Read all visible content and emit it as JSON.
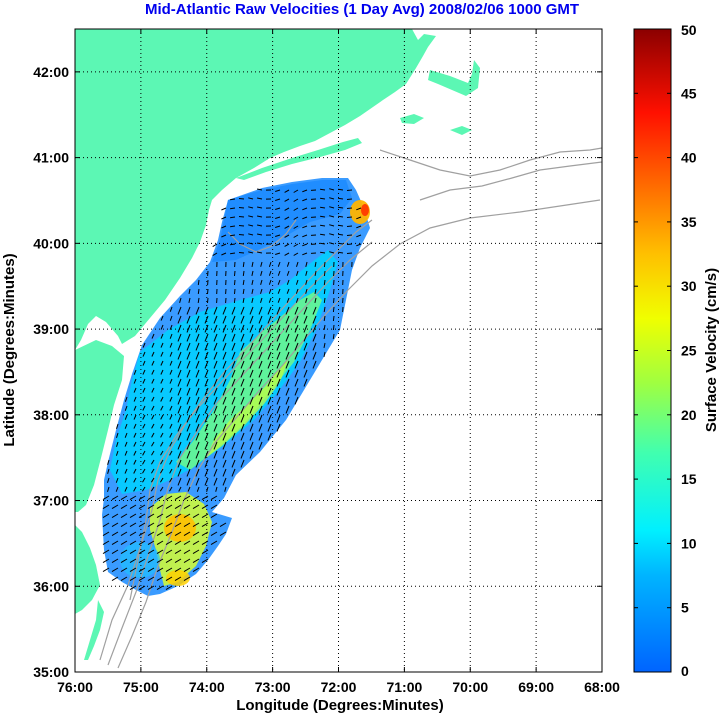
{
  "title": "Mid-Atlantic Raw Velocities (1 Day Avg) 2008/02/06 1000 GMT",
  "chart_data": {
    "type": "heatmap",
    "title": "Mid-Atlantic Raw Velocities (1 Day Avg) 2008/02/06 1000 GMT",
    "xlabel": "Longitude (Degrees:Minutes)",
    "ylabel": "Latitude (Degrees:Minutes)",
    "xlim": [
      -76,
      -68
    ],
    "ylim": [
      35,
      42.5
    ],
    "x_tick_labels": [
      "76:00",
      "75:00",
      "74:00",
      "73:00",
      "72:00",
      "71:00",
      "70:00",
      "69:00",
      "68:00"
    ],
    "y_tick_labels": [
      "35:00",
      "36:00",
      "37:00",
      "38:00",
      "39:00",
      "40:00",
      "41:00",
      "42:00"
    ],
    "grid": true,
    "colorbar": {
      "label": "Surface Velocity (cm/s)",
      "range": [
        0,
        50
      ],
      "tick_labels": [
        "0",
        "5",
        "10",
        "15",
        "20",
        "25",
        "30",
        "35",
        "40",
        "45",
        "50"
      ],
      "colormap": "jet"
    },
    "land_color": "#5cf7b4",
    "bathymetry_color": "#a0a0a0",
    "vector_color": "#000000"
  }
}
